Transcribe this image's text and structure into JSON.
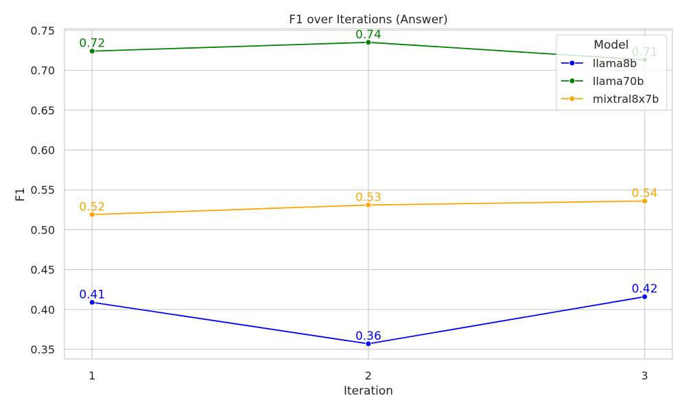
{
  "chart_data": {
    "type": "line",
    "title": "F1 over Iterations (Answer)",
    "xlabel": "Iteration",
    "ylabel": "F1",
    "x": [
      1,
      2,
      3
    ],
    "x_tick_labels": [
      "1",
      "2",
      "3"
    ],
    "xlim": [
      0.9,
      3.1
    ],
    "ylim": [
      0.338,
      0.752
    ],
    "y_ticks": [
      0.35,
      0.4,
      0.45,
      0.5,
      0.55,
      0.6,
      0.65,
      0.7,
      0.75
    ],
    "y_tick_labels": [
      "0.35",
      "0.40",
      "0.45",
      "0.50",
      "0.55",
      "0.60",
      "0.65",
      "0.70",
      "0.75"
    ],
    "grid": true,
    "legend": {
      "title": "Model",
      "placement": "top-right"
    },
    "series": [
      {
        "name": "llama8b",
        "color": "#0000ff",
        "values": [
          0.409,
          0.357,
          0.416
        ],
        "labels": [
          "0.41",
          "0.36",
          "0.42"
        ]
      },
      {
        "name": "llama70b",
        "color": "#008000",
        "values": [
          0.724,
          0.735,
          0.713
        ],
        "labels": [
          "0.72",
          "0.74",
          "0.71"
        ]
      },
      {
        "name": "mixtral8x7b",
        "color": "#ffa500",
        "values": [
          0.519,
          0.531,
          0.536
        ],
        "labels": [
          "0.52",
          "0.53",
          "0.54"
        ]
      }
    ]
  }
}
